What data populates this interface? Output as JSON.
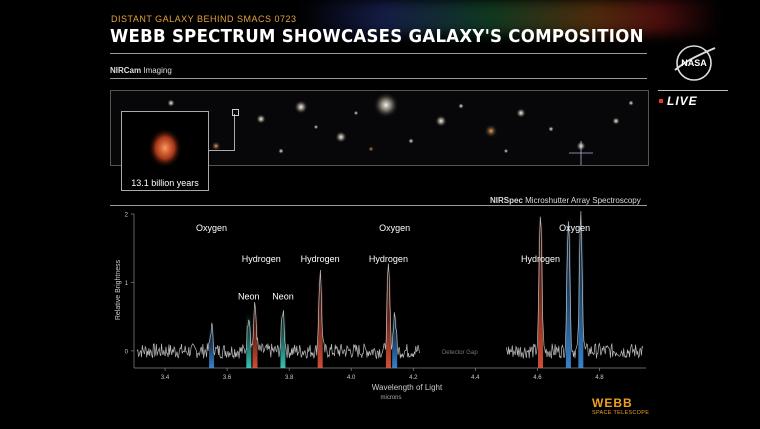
{
  "header": {
    "kicker": "DISTANT GALAXY BEHIND SMACS 0723",
    "title": "WEBB SPECTRUM SHOWCASES GALAXY'S COMPOSITION"
  },
  "broadcast": {
    "live_label": "LIVE",
    "nasa_text": "NASA"
  },
  "imaging": {
    "label_bold": "NIRCam",
    "label_rest": " Imaging",
    "inset_caption": "13.1 billion years"
  },
  "spectroscopy": {
    "label_bold": "NIRSpec",
    "label_rest": " Microshutter Array Spectroscopy"
  },
  "branding": {
    "webb": "WEBB",
    "webb_sub": "SPACE TELESCOPE"
  },
  "colors": {
    "accent": "#e5a23a",
    "oxygen": "#3d8fe0",
    "hydrogen": "#e8553a",
    "neon": "#3fd6c6",
    "noise": "#bdbdbd"
  },
  "chart_data": {
    "type": "line",
    "title": "",
    "xlabel": "Wavelength of Light",
    "xunit": "microns",
    "ylabel": "Relative Brightness",
    "xlim": [
      3.3,
      4.95
    ],
    "ylim": [
      -0.25,
      2.0
    ],
    "x_ticks": [
      3.4,
      3.6,
      3.8,
      4.0,
      4.2,
      4.4,
      4.6,
      4.8
    ],
    "x_tick_labels": [
      "3.4",
      "3.6",
      "3.8",
      "4.0",
      "4.2",
      "4.4",
      "4.6",
      "4.8"
    ],
    "y_ticks": [
      0,
      1,
      2
    ],
    "y_tick_labels": [
      "0",
      "1",
      "2"
    ],
    "detector_gap": {
      "label": "Detector Gap",
      "x_range": [
        4.22,
        4.48
      ]
    },
    "lines": [
      {
        "element": "Oxygen",
        "x": 3.55,
        "peak": 0.35
      },
      {
        "element": "Hydrogen",
        "x": 3.69,
        "peak": 0.65
      },
      {
        "element": "Neon",
        "x": 3.67,
        "peak": 0.55
      },
      {
        "element": "Neon",
        "x": 3.78,
        "peak": 0.6
      },
      {
        "element": "Hydrogen",
        "x": 3.9,
        "peak": 1.15
      },
      {
        "element": "Hydrogen",
        "x": 4.12,
        "peak": 1.2
      },
      {
        "element": "Oxygen",
        "x": 4.14,
        "peak": 0.55
      },
      {
        "element": "Hydrogen",
        "x": 4.61,
        "peak": 2.0
      },
      {
        "element": "Oxygen",
        "x": 4.7,
        "peak": 2.0
      },
      {
        "element": "Oxygen",
        "x": 4.74,
        "peak": 2.0
      }
    ],
    "labels": [
      {
        "text": "Oxygen",
        "x": 3.55,
        "y": 1.75
      },
      {
        "text": "Hydrogen",
        "x": 3.71,
        "y": 1.3
      },
      {
        "text": "Hydrogen",
        "x": 3.9,
        "y": 1.3
      },
      {
        "text": "Hydrogen",
        "x": 4.12,
        "y": 1.3
      },
      {
        "text": "Oxygen",
        "x": 4.14,
        "y": 1.75
      },
      {
        "text": "Neon",
        "x": 3.67,
        "y": 0.75
      },
      {
        "text": "Neon",
        "x": 3.78,
        "y": 0.75
      },
      {
        "text": "Hydrogen",
        "x": 4.61,
        "y": 1.3
      },
      {
        "text": "Oxygen",
        "x": 4.72,
        "y": 1.75
      }
    ]
  }
}
